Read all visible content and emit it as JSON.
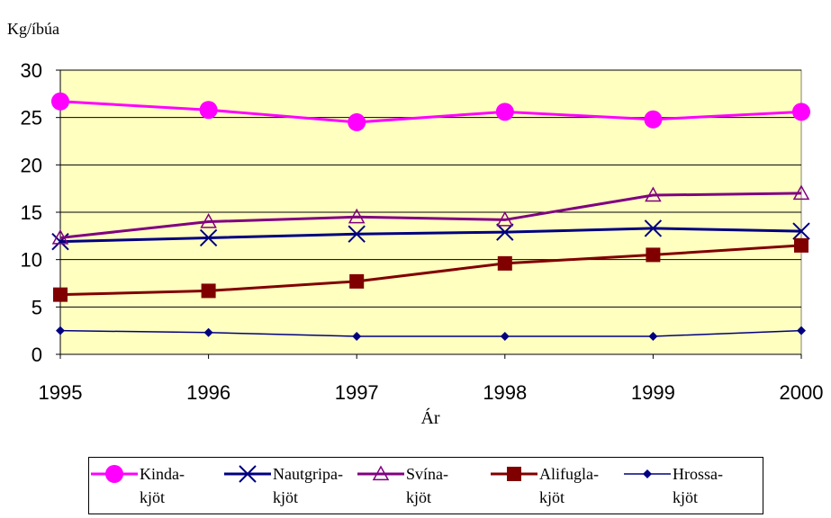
{
  "chart_data": {
    "type": "line",
    "y_label": "Kg/íbúa",
    "x_label": "Ár",
    "x": [
      1995,
      1996,
      1997,
      1998,
      1999,
      2000
    ],
    "xlim": [
      1995,
      2000
    ],
    "xticks": [
      1995,
      1996,
      1997,
      1998,
      1999,
      2000
    ],
    "ylim": [
      0,
      30
    ],
    "yticks": [
      0,
      5,
      10,
      15,
      20,
      25,
      30
    ],
    "grid": true,
    "plot_background": "#ffffc0",
    "legend": "bottom",
    "series": [
      {
        "name": "Kinda-\nkjöt",
        "color": "#ff00ff",
        "marker": "circle",
        "line_width": 3,
        "values": [
          26.7,
          25.8,
          24.5,
          25.6,
          24.8,
          25.6
        ]
      },
      {
        "name": "Nautgripa-\nkjöt",
        "color": "#000080",
        "marker": "x",
        "line_width": 3,
        "values": [
          11.9,
          12.3,
          12.7,
          12.9,
          13.3,
          13.0
        ]
      },
      {
        "name": "Svína-\nkjöt",
        "color": "#800080",
        "marker": "triangle",
        "line_width": 3,
        "values": [
          12.3,
          14.0,
          14.5,
          14.2,
          16.8,
          17.0
        ]
      },
      {
        "name": "Alifugla-\nkjöt",
        "color": "#800000",
        "marker": "square",
        "line_width": 3,
        "values": [
          6.3,
          6.7,
          7.7,
          9.6,
          10.5,
          11.5
        ]
      },
      {
        "name": "Hrossa-\nkjöt",
        "color": "#000080",
        "marker": "diamond",
        "line_width": 1.5,
        "values": [
          2.5,
          2.3,
          1.9,
          1.9,
          1.9,
          2.5
        ]
      }
    ]
  }
}
